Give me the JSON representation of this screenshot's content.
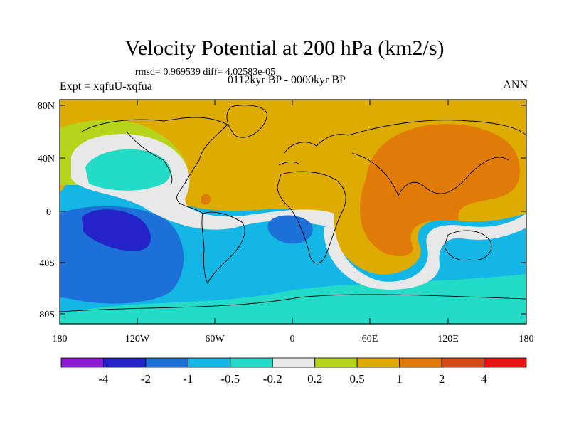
{
  "title": "Velocity Potential at 200 hPa (km2/s)",
  "rmsd_line": "rmsd= 0.969539 diff= 4.02583e-05",
  "experiment": "Expt = xqfuU-xqfua",
  "period": "0112kyr BP - 0000kyr BP",
  "season": "ANN",
  "lat_labels": [
    "80N",
    "40N",
    "0",
    "40S",
    "80S"
  ],
  "lon_labels": [
    "180",
    "120W",
    "60W",
    "0",
    "60E",
    "120E",
    "180"
  ],
  "colorbar": {
    "labels": [
      "-4",
      "-2",
      "-1",
      "-0.5",
      "-0.2",
      "0.2",
      "0.5",
      "1",
      "2",
      "4"
    ],
    "colors": [
      "#8a1ad8",
      "#2323c8",
      "#1c70d8",
      "#14b6e6",
      "#22dcc8",
      "#e8e8e8",
      "#b6d41a",
      "#deac00",
      "#e07a08",
      "#d84814",
      "#e81414"
    ]
  },
  "map_colors": {
    "c_m4": "#2323c8",
    "c_m2": "#1c70d8",
    "c_m1": "#14b6e6",
    "c_m05": "#22dcc8",
    "c_zero": "#e8e8e8",
    "c_p02": "#b6d41a",
    "c_p05": "#deac00",
    "c_p1": "#e07a08"
  }
}
